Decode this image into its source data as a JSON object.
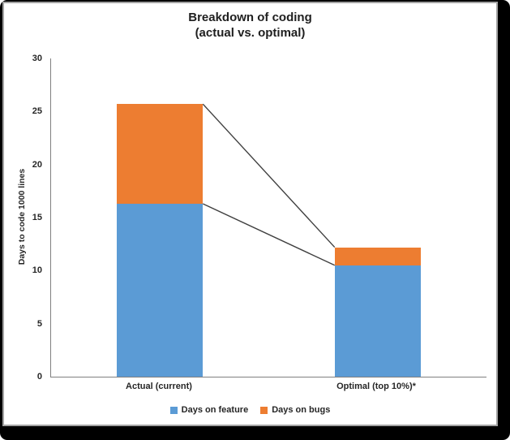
{
  "chart_data": {
    "type": "bar",
    "stacked": true,
    "title_line1": "Breakdown of coding",
    "title_line2": "(actual vs. optimal)",
    "ylabel": "Days to code 1000 lines",
    "xlabel": "",
    "categories": [
      "Actual (current)",
      "Optimal (top 10%)*"
    ],
    "series": [
      {
        "name": "Days on feature",
        "values": [
          16.3,
          10.5
        ],
        "color": "#5B9BD5"
      },
      {
        "name": "Days on bugs",
        "values": [
          9.4,
          1.7
        ],
        "color": "#ED7D31"
      }
    ],
    "totals": [
      25.7,
      12.2
    ],
    "ylim": [
      0,
      30
    ],
    "yticks": [
      0,
      5,
      10,
      15,
      20,
      25,
      30
    ],
    "grid": false,
    "legend_position": "bottom",
    "connector_lines": true,
    "connector_line_color": "#3f3f3f",
    "axis_color": "#808080",
    "text_color": "#262626",
    "title_color": "#1f1f1f"
  },
  "frame": {
    "background": "#000000",
    "panel_background": "#ffffff",
    "panel_border": "#a3a3a3"
  }
}
